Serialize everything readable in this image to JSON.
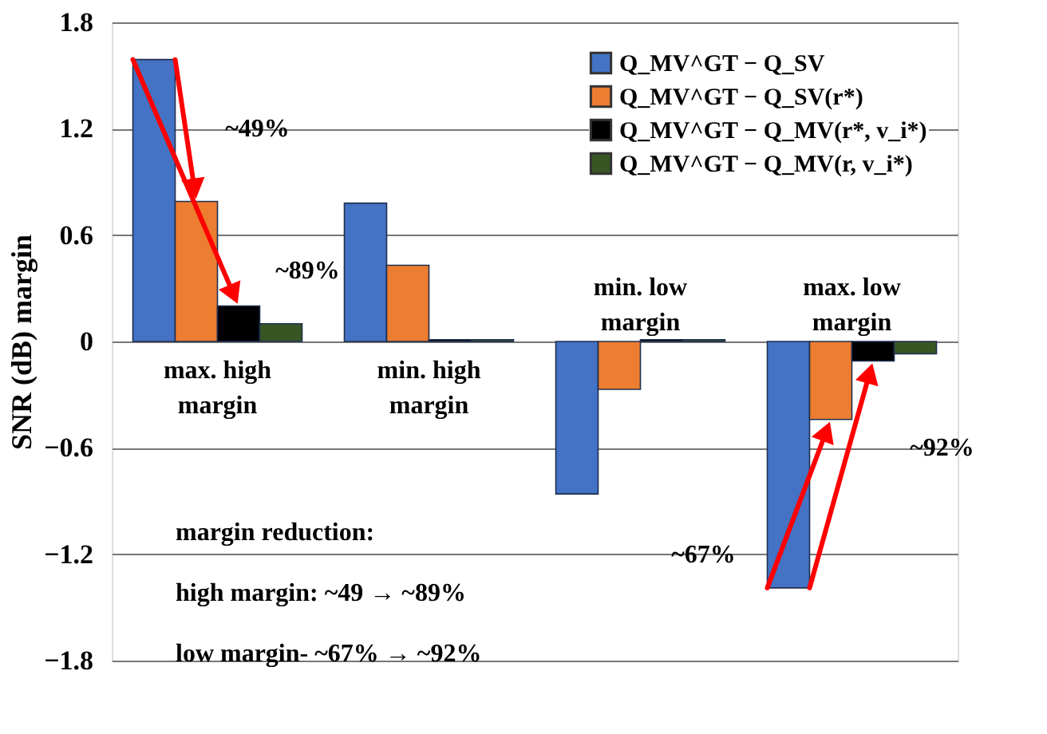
{
  "chart_data": {
    "type": "bar",
    "ylabel": "SNR (dB) margin",
    "categories": [
      "max. high\nmargin",
      "min. high\nmargin",
      "min. low\nmargin",
      "max. low\nmargin"
    ],
    "series": [
      {
        "name": "Q_MV^GT − Q_SV",
        "color": "#4472c4",
        "values": [
          1.59,
          0.78,
          -0.86,
          -1.39
        ]
      },
      {
        "name": "Q_MV^GT − Q_SV(r*)",
        "color": "#ed7d31",
        "values": [
          0.79,
          0.43,
          -0.27,
          -0.44
        ]
      },
      {
        "name": "Q_MV^GT − Q_MV(r*, v_i*)",
        "color": "#000000",
        "values": [
          0.2,
          0.01,
          0.01,
          -0.11
        ]
      },
      {
        "name": "Q_MV^GT − Q_MV(r, v_i*)",
        "color": "#375623",
        "values": [
          0.1,
          0.01,
          0.01,
          -0.07
        ]
      }
    ],
    "ylim": [
      -1.8,
      1.8
    ],
    "yticks": [
      -1.8,
      -1.2,
      -0.6,
      0,
      0.6,
      1.2,
      1.8
    ],
    "grid": "y",
    "legend": "top right",
    "tick_labels": "y",
    "annotations": [
      "~49%",
      "~89%",
      "~67%",
      "~92%",
      "margin reduction:",
      "high margin: ~49 → ~89%",
      "low margin- ~67% → ~92%"
    ]
  }
}
